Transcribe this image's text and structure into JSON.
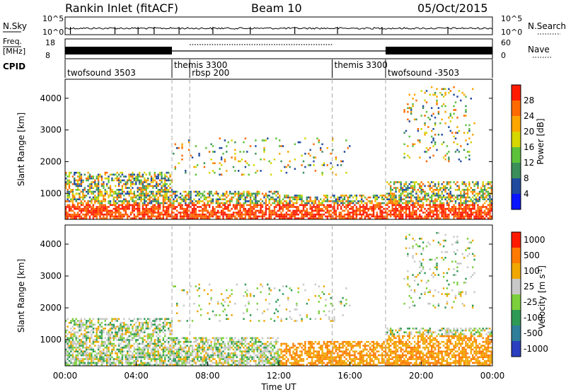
{
  "header": {
    "station": "Rankin Inlet (fitACF)",
    "beam": "Beam 10",
    "date": "05/Oct/2015"
  },
  "noise_panel": {
    "left_label": "N.Sky",
    "right_label": "N.Search",
    "left_ticks": [
      "10^5",
      "10^0"
    ],
    "right_ticks": [
      "10^5",
      "10^0"
    ]
  },
  "freq_panel": {
    "left_label_line1": "Freq.",
    "left_label_line2": "[MHz]",
    "right_label": "Nave",
    "left_ticks": [
      "18",
      "8"
    ],
    "right_ticks": [
      "60",
      "0"
    ]
  },
  "cpid": {
    "label": "CPID",
    "segments": [
      {
        "name": "twofsound 3503",
        "start_h": 0.0,
        "end_h": 6.0
      },
      {
        "name": "themis 3300",
        "start_h": 6.0,
        "end_h": 7.0
      },
      {
        "name": "rbsp 200",
        "start_h": 7.0,
        "end_h": 15.0
      },
      {
        "name": "themis 3300",
        "start_h": 15.0,
        "end_h": 18.0
      },
      {
        "name": "twofsound -3503",
        "start_h": 18.0,
        "end_h": 24.0
      }
    ]
  },
  "axes": {
    "ylabel": "Slant Range [km]",
    "xlabel": "Time UT",
    "x_ticks": [
      "00:00",
      "04:00",
      "08:00",
      "12:00",
      "16:00",
      "20:00",
      "00:00"
    ],
    "y_ticks": [
      "1000",
      "2000",
      "3000",
      "4000"
    ]
  },
  "power_scale": {
    "label": "Power [dB]",
    "ticks": [
      "4",
      "8",
      "12",
      "16",
      "20",
      "24",
      "28"
    ],
    "colors": [
      "#0a14ff",
      "#1f4a9e",
      "#3b8f5a",
      "#5cc23a",
      "#d6d600",
      "#ffa500",
      "#ff6a00",
      "#ff1a00"
    ]
  },
  "velocity_scale": {
    "label": "Velocity [m s",
    "label_sup": "-1",
    "label_end": "]",
    "ticks": [
      "1000",
      "500",
      "100",
      "25",
      "-25",
      "-100",
      "-500",
      "-1000"
    ],
    "colors": [
      "#2a40c0",
      "#2f7f9a",
      "#2f9a55",
      "#7cd03c",
      "#c8c8c8",
      "#f0a800",
      "#ff7a00",
      "#ff1a00"
    ]
  },
  "chart_data": {
    "type": "heatmap",
    "title": "Rankin Inlet (fitACF)",
    "xlabel": "Time UT",
    "ylabel": "Slant Range [km]",
    "xlim": [
      0,
      24
    ],
    "ylim": [
      180,
      4600
    ],
    "x_tick_values": [
      0,
      4,
      8,
      12,
      16,
      20,
      24
    ],
    "y_tick_values": [
      1000,
      2000,
      3000,
      4000
    ],
    "power_range_db": [
      0,
      30
    ],
    "velocity_range": [
      -1000,
      1000
    ],
    "mode_change_hours": [
      6.0,
      7.0,
      15.0,
      18.0
    ]
  }
}
